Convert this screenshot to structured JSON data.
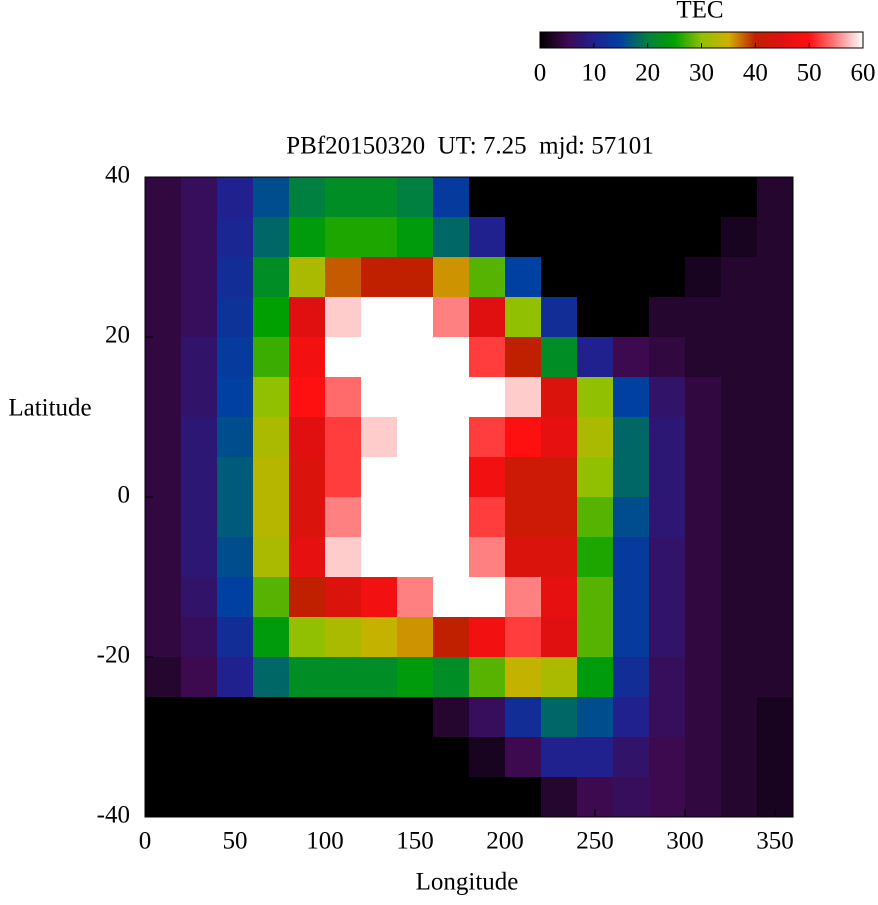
{
  "chart_data": {
    "type": "heatmap",
    "title": "PBf20150320  UT: 7.25  mjd: 57101",
    "x_label": "Longitude",
    "y_label": "Latitude",
    "colorbar_label": "TEC",
    "xlim": [
      0,
      360
    ],
    "ylim": [
      -40,
      40
    ],
    "xticks": [
      0,
      50,
      100,
      150,
      200,
      250,
      300,
      350
    ],
    "yticks": [
      -40,
      -20,
      0,
      20,
      40
    ],
    "clim": [
      0,
      60
    ],
    "cticks": [
      0,
      10,
      20,
      30,
      40,
      50,
      60
    ],
    "colormap": [
      {
        "value": 0,
        "color": "#000000"
      },
      {
        "value": 5,
        "color": "#3d0a4f"
      },
      {
        "value": 10,
        "color": "#20208f"
      },
      {
        "value": 15,
        "color": "#0040a0"
      },
      {
        "value": 20,
        "color": "#008040"
      },
      {
        "value": 25,
        "color": "#00a000"
      },
      {
        "value": 30,
        "color": "#90c000"
      },
      {
        "value": 35,
        "color": "#d0b000"
      },
      {
        "value": 40,
        "color": "#c02000"
      },
      {
        "value": 45,
        "color": "#e01010"
      },
      {
        "value": 50,
        "color": "#ff1010"
      },
      {
        "value": 55,
        "color": "#ff8080"
      },
      {
        "value": 60,
        "color": "#ffffff"
      }
    ],
    "x": [
      10,
      30,
      50,
      70,
      90,
      110,
      130,
      150,
      170,
      190,
      210,
      230,
      250,
      270,
      290,
      310,
      330,
      350
    ],
    "y": [
      37.5,
      32.5,
      27.5,
      22.5,
      17.5,
      12.5,
      7.5,
      2.5,
      -2.5,
      -7.5,
      -12.5,
      -17.5,
      -22.5,
      -27.5,
      -32.5,
      -37.5
    ],
    "z": [
      [
        4,
        6,
        10,
        16,
        20,
        22,
        22,
        20,
        14,
        0,
        0,
        0,
        0,
        0,
        0,
        0,
        0,
        3
      ],
      [
        4,
        6,
        11,
        18,
        24,
        26,
        26,
        24,
        18,
        10,
        0,
        0,
        0,
        0,
        0,
        0,
        2,
        3
      ],
      [
        4,
        6,
        12,
        22,
        32,
        38,
        40,
        40,
        36,
        28,
        15,
        0,
        0,
        0,
        0,
        2,
        3,
        3
      ],
      [
        4,
        6,
        13,
        25,
        45,
        58,
        60,
        60,
        55,
        45,
        30,
        12,
        0,
        0,
        3,
        3,
        3,
        3
      ],
      [
        4,
        7,
        14,
        27,
        48,
        60,
        60,
        60,
        60,
        52,
        40,
        22,
        10,
        5,
        4,
        3,
        3,
        3
      ],
      [
        4,
        7,
        15,
        30,
        50,
        54,
        60,
        60,
        60,
        60,
        58,
        44,
        30,
        15,
        7,
        4,
        3,
        3
      ],
      [
        4,
        8,
        16,
        32,
        45,
        52,
        58,
        60,
        60,
        52,
        50,
        46,
        32,
        18,
        8,
        4,
        3,
        3
      ],
      [
        4,
        8,
        17,
        33,
        44,
        52,
        60,
        60,
        60,
        48,
        42,
        42,
        30,
        18,
        8,
        4,
        3,
        3
      ],
      [
        4,
        8,
        17,
        33,
        44,
        55,
        60,
        60,
        60,
        52,
        42,
        42,
        28,
        16,
        8,
        4,
        3,
        3
      ],
      [
        4,
        8,
        16,
        32,
        46,
        58,
        60,
        60,
        60,
        55,
        44,
        44,
        26,
        14,
        7,
        4,
        3,
        3
      ],
      [
        4,
        7,
        15,
        28,
        40,
        44,
        48,
        55,
        60,
        60,
        55,
        46,
        28,
        14,
        7,
        4,
        3,
        3
      ],
      [
        4,
        6,
        12,
        24,
        30,
        32,
        34,
        36,
        40,
        48,
        52,
        45,
        28,
        14,
        7,
        4,
        3,
        3
      ],
      [
        3,
        5,
        10,
        18,
        22,
        22,
        22,
        24,
        22,
        28,
        34,
        32,
        24,
        12,
        6,
        4,
        3,
        3
      ],
      [
        0,
        0,
        0,
        0,
        0,
        0,
        0,
        0,
        3,
        6,
        12,
        18,
        16,
        10,
        6,
        4,
        3,
        2
      ],
      [
        0,
        0,
        0,
        0,
        0,
        0,
        0,
        0,
        0,
        2,
        5,
        10,
        10,
        7,
        5,
        4,
        3,
        2
      ],
      [
        0,
        0,
        0,
        0,
        0,
        0,
        0,
        0,
        0,
        0,
        0,
        3,
        5,
        6,
        5,
        4,
        3,
        2
      ]
    ]
  }
}
